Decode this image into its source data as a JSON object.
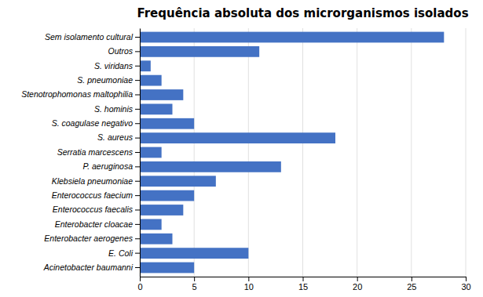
{
  "chart_data": {
    "type": "bar",
    "orientation": "horizontal",
    "title": "Frequência absoluta dos microrganismos isolados",
    "categories": [
      "Acinetobacter baumanni",
      "E. Coli",
      "Enterobacter aerogenes",
      "Enterobacter cloacae",
      "Enterococcus faecalis",
      "Enterococcus faecium",
      "Klebsiela pneumoniae",
      "P. aeruginosa",
      "Serratia marcescens",
      "S. aureus",
      "S. coagulase negativo",
      "S. hominis",
      "Stenotrophomonas maltophilia",
      "S. pneumoniae",
      "S. viridans",
      "Outros",
      "Sem isolamento cultural"
    ],
    "values": [
      5,
      10,
      3,
      2,
      4,
      5,
      7,
      13,
      2,
      18,
      5,
      3,
      4,
      2,
      1,
      11,
      28
    ],
    "color": "#4472C4",
    "xlim": [
      0,
      30
    ],
    "xticks": [
      0,
      5,
      10,
      15,
      20,
      25,
      30
    ],
    "grid": true
  }
}
